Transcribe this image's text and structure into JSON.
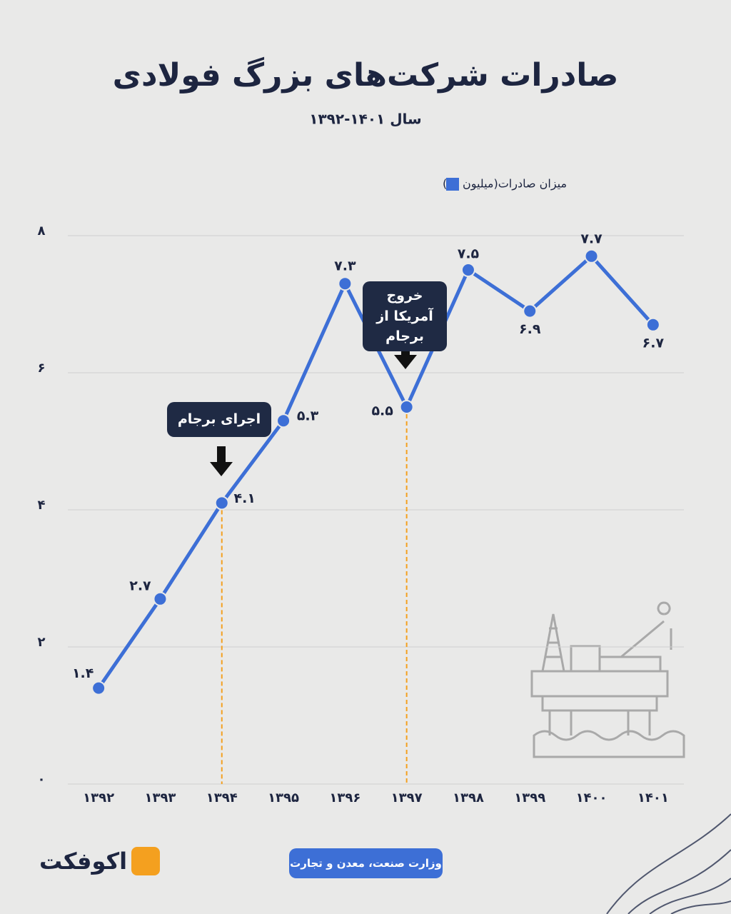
{
  "chart_data": {
    "type": "line",
    "title": "صادرات شرکت‌های بزرگ فولادی",
    "subtitle": "سال ۱۴۰۱-۱۳۹۲",
    "categories": [
      "۱۳۹۲",
      "۱۳۹۳",
      "۱۳۹۴",
      "۱۳۹۵",
      "۱۳۹۶",
      "۱۳۹۷",
      "۱۳۹۸",
      "۱۳۹۹",
      "۱۴۰۰",
      "۱۴۰۱"
    ],
    "series": [
      {
        "name": "میزان صادرات(میلیون تن)",
        "color": "#3d6fd6",
        "values": [
          1.4,
          2.7,
          4.1,
          5.3,
          7.3,
          5.5,
          7.5,
          6.9,
          7.7,
          6.7
        ],
        "value_labels": [
          "۱.۴",
          "۲.۷",
          "۴.۱",
          "۵.۳",
          "۷.۳",
          "۵.۵",
          "۷.۵",
          "۶.۹",
          "۷.۷",
          "۶.۷"
        ]
      }
    ],
    "ylim": [
      0,
      8
    ],
    "yticks": [
      {
        "value": 0,
        "label": "۰"
      },
      {
        "value": 2,
        "label": "۲"
      },
      {
        "value": 4,
        "label": "۴"
      },
      {
        "value": 6,
        "label": "۶"
      },
      {
        "value": 8,
        "label": "۸"
      }
    ],
    "grid": true,
    "annotations": [
      "اجرای برجام",
      "خروج آمریکا از برجام"
    ],
    "source": "وزارت صنعت، معدن و تجارت",
    "brand": "اکوفکت"
  }
}
